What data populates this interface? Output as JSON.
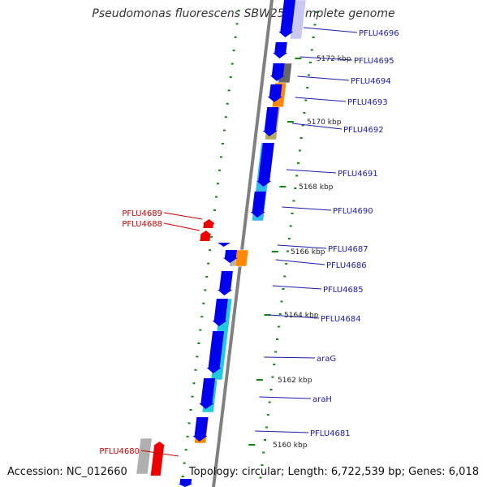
{
  "title": "Pseudomonas fluorescens SBW25, complete genome",
  "footer": {
    "accession": "Accession: NC_012660",
    "summary": "Topology: circular; Length: 6,722,539 bp; Genes: 6,018"
  },
  "colors": {
    "forward_cds": "#0000ee",
    "reverse_cds": "#ee0000",
    "forward_label": "#1a1aa8",
    "reverse_label": "#cc0000",
    "backbone": "#808080",
    "tick": "#118811",
    "blast_cyan": "#22c8dd",
    "blast_light_blue": "#30b8f0",
    "blast_orange": "#ff8800",
    "blast_khaki": "#b8a860",
    "blast_dark_gray": "#666666",
    "blast_light_gray": "#b0b0b0",
    "blast_lavender": "#c8c8f0"
  },
  "ticks": [
    {
      "label": "5172 kbp"
    },
    {
      "label": "5170 kbp"
    },
    {
      "label": "5168 kbp"
    },
    {
      "label": "5166 kbp"
    },
    {
      "label": "5164 kbp"
    },
    {
      "label": "5162 kbp"
    },
    {
      "label": "5160 kbp"
    }
  ],
  "forward_genes": [
    {
      "label": "PFLU4696"
    },
    {
      "label": "PFLU4695"
    },
    {
      "label": "PFLU4694"
    },
    {
      "label": "PFLU4693"
    },
    {
      "label": "PFLU4692"
    },
    {
      "label": "PFLU4691"
    },
    {
      "label": "PFLU4690"
    },
    {
      "label": "PFLU4687"
    },
    {
      "label": "PFLU4686"
    },
    {
      "label": "PFLU4685"
    },
    {
      "label": "PFLU4684"
    },
    {
      "label": "araG"
    },
    {
      "label": "araH"
    },
    {
      "label": "PFLU4681"
    }
  ],
  "reverse_genes": [
    {
      "label": "PFLU4689"
    },
    {
      "label": "PFLU4688"
    },
    {
      "label": "PFLU4680"
    }
  ]
}
